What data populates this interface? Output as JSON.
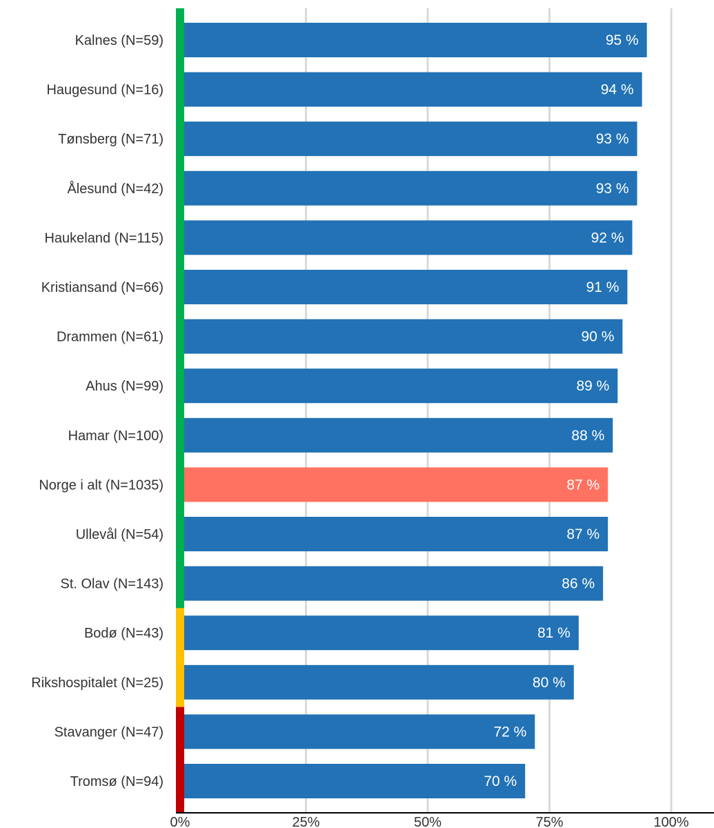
{
  "chart_data": {
    "type": "bar",
    "orientation": "horizontal",
    "categories": [
      "Kalnes (N=59)",
      "Haugesund (N=16)",
      "Tønsberg (N=71)",
      "Ålesund (N=42)",
      "Haukeland (N=115)",
      "Kristiansand (N=66)",
      "Drammen (N=61)",
      "Ahus (N=99)",
      "Hamar (N=100)",
      "Norge i alt (N=1035)",
      "Ullevål (N=54)",
      "St. Olav (N=143)",
      "Bodø (N=43)",
      "Rikshospitalet (N=25)",
      "Stavanger (N=47)",
      "Tromsø (N=94)"
    ],
    "values": [
      95,
      94,
      93,
      93,
      92,
      91,
      90,
      89,
      88,
      87,
      87,
      86,
      81,
      80,
      72,
      70
    ],
    "value_labels": [
      "95 %",
      "94 %",
      "93 %",
      "93 %",
      "92 %",
      "91 %",
      "90 %",
      "89 %",
      "88 %",
      "87 %",
      "87 %",
      "86 %",
      "81 %",
      "80 %",
      "72 %",
      "70 %"
    ],
    "highlight_index": 9,
    "xlim": [
      0,
      100
    ],
    "xticks": [
      0,
      25,
      50,
      75,
      100
    ],
    "xtick_labels": [
      "0%",
      "25%",
      "50%",
      "75%",
      "100%"
    ],
    "grid": "vertical",
    "title": "",
    "xlabel": "",
    "ylabel": "",
    "colors": {
      "bar": "#2272b5",
      "highlight": "#ff7262",
      "grid": "#d9d9d9",
      "axis": "#000000"
    },
    "target_bands": [
      {
        "from_index": 0,
        "to_index": 11,
        "color": "#00b050"
      },
      {
        "from_index": 12,
        "to_index": 13,
        "color": "#ffc000"
      },
      {
        "from_index": 14,
        "to_index": 15,
        "color": "#c00000"
      }
    ]
  }
}
